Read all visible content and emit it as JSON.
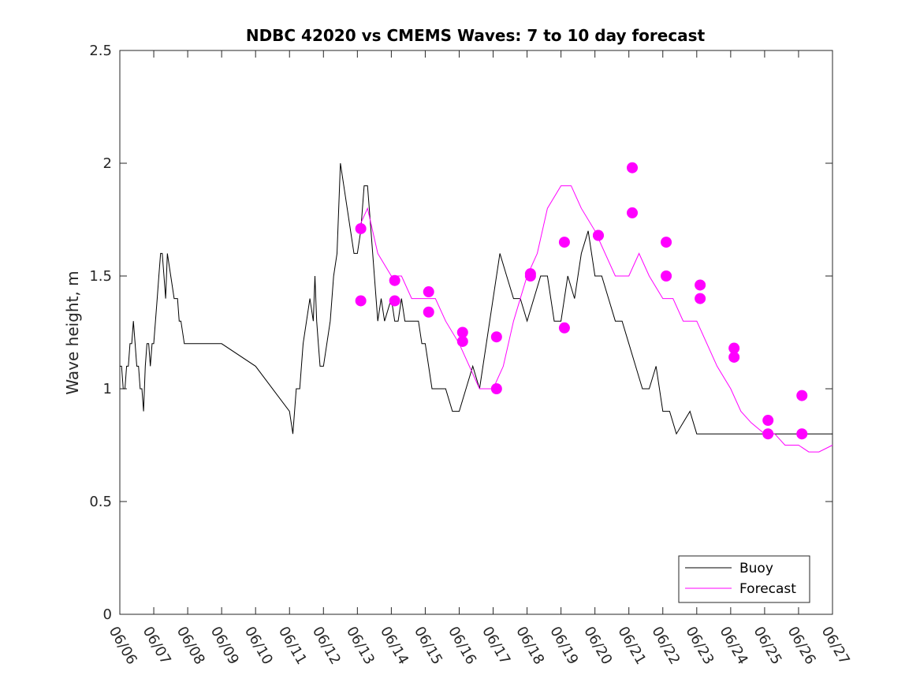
{
  "chart_data": {
    "type": "line",
    "title": "NDBC 42020 vs CMEMS Waves: 7 to 10 day forecast",
    "xlabel": "",
    "ylabel": "Wave height, m",
    "xlim": [
      0,
      21
    ],
    "ylim": [
      0,
      2.5
    ],
    "yticks": [
      0,
      0.5,
      1,
      1.5,
      2,
      2.5
    ],
    "ytick_labels": [
      "0",
      "0.5",
      "1",
      "1.5",
      "2",
      "2.5"
    ],
    "xtick_labels": [
      "06/06",
      "06/07",
      "06/08",
      "06/09",
      "06/10",
      "06/11",
      "06/12",
      "06/13",
      "06/14",
      "06/15",
      "06/16",
      "06/17",
      "06/18",
      "06/19",
      "06/20",
      "06/21",
      "06/22",
      "06/23",
      "06/24",
      "06/25",
      "06/26",
      "06/27"
    ],
    "x_unit": "days since 06/06",
    "grid": false,
    "legend_position": "bottom-right",
    "colors": {
      "buoy": "#000000",
      "forecast": "#ff00ff"
    },
    "series": [
      {
        "name": "Buoy",
        "color": "#000000",
        "x": [
          0,
          0.05,
          0.1,
          0.15,
          0.2,
          0.25,
          0.3,
          0.35,
          0.4,
          0.45,
          0.5,
          0.55,
          0.6,
          0.65,
          0.7,
          0.75,
          0.8,
          0.85,
          0.9,
          0.95,
          1.0,
          1.05,
          1.1,
          1.15,
          1.2,
          1.25,
          1.3,
          1.35,
          1.4,
          1.5,
          1.6,
          1.7,
          1.75,
          1.8,
          1.9,
          2.0,
          2.1,
          2.2,
          2.35,
          2.5,
          2.6,
          2.7,
          2.75,
          2.8,
          3.0,
          4.0,
          5.0,
          5.1,
          5.2,
          5.3,
          5.4,
          5.5,
          5.6,
          5.7,
          5.75,
          5.8,
          5.85,
          5.9,
          5.95,
          6.0,
          6.1,
          6.2,
          6.3,
          6.4,
          6.5,
          6.6,
          6.7,
          6.8,
          6.9,
          7.0,
          7.1,
          7.2,
          7.3,
          7.4,
          7.5,
          7.6,
          7.7,
          7.8,
          8.0,
          8.1,
          8.2,
          8.3,
          8.4,
          8.5,
          8.6,
          8.7,
          8.8,
          8.9,
          9.0,
          9.2,
          9.4,
          9.6,
          9.8,
          10.0,
          10.2,
          10.4,
          10.6,
          10.8,
          11.0,
          11.2,
          11.4,
          11.6,
          11.8,
          12.0,
          12.2,
          12.4,
          12.6,
          12.8,
          13.0,
          13.2,
          13.4,
          13.6,
          13.8,
          14.0,
          14.2,
          14.4,
          14.6,
          14.8,
          15.0,
          15.2,
          15.4,
          15.6,
          15.8,
          16.0,
          16.2,
          16.4,
          16.6,
          16.8,
          17.0,
          17.2,
          17.4,
          17.6,
          17.8,
          18.0,
          18.2,
          18.4,
          18.6,
          18.8,
          19.0,
          19.2,
          19.4,
          19.6,
          19.8,
          20.0,
          20.2,
          20.4,
          20.6,
          20.8,
          21.0
        ],
        "y": [
          1.1,
          1.1,
          1.0,
          1.0,
          1.1,
          1.1,
          1.2,
          1.2,
          1.3,
          1.2,
          1.1,
          1.1,
          1.0,
          1.0,
          0.9,
          1.1,
          1.2,
          1.2,
          1.1,
          1.2,
          1.2,
          1.3,
          1.4,
          1.5,
          1.6,
          1.6,
          1.5,
          1.4,
          1.6,
          1.5,
          1.4,
          1.4,
          1.3,
          1.3,
          1.2,
          1.2,
          1.2,
          1.2,
          1.2,
          1.2,
          1.2,
          1.2,
          1.2,
          1.2,
          1.2,
          1.1,
          0.9,
          0.8,
          1.0,
          1.0,
          1.2,
          1.3,
          1.4,
          1.3,
          1.5,
          1.3,
          1.2,
          1.1,
          1.1,
          1.1,
          1.2,
          1.3,
          1.5,
          1.6,
          2.0,
          1.9,
          1.8,
          1.7,
          1.6,
          1.6,
          1.7,
          1.9,
          1.9,
          1.7,
          1.5,
          1.3,
          1.4,
          1.3,
          1.4,
          1.3,
          1.3,
          1.4,
          1.3,
          1.3,
          1.3,
          1.3,
          1.3,
          1.2,
          1.2,
          1.0,
          1.0,
          1.0,
          0.9,
          0.9,
          1.0,
          1.1,
          1.0,
          1.2,
          1.4,
          1.6,
          1.5,
          1.4,
          1.4,
          1.3,
          1.4,
          1.5,
          1.5,
          1.3,
          1.3,
          1.5,
          1.4,
          1.6,
          1.7,
          1.5,
          1.5,
          1.4,
          1.3,
          1.3,
          1.2,
          1.1,
          1.0,
          1.0,
          1.1,
          0.9,
          0.9,
          0.8,
          0.85,
          0.9,
          0.8,
          0.8,
          0.8,
          0.8,
          0.8,
          0.8,
          0.8,
          0.8,
          0.8,
          0.8,
          0.8,
          0.8,
          0.8,
          0.8,
          0.8,
          0.8,
          0.8,
          0.8,
          0.8,
          0.8,
          0.8
        ]
      },
      {
        "name": "Forecast",
        "color": "#ff00ff",
        "x": [
          7.0,
          7.3,
          7.6,
          8.0,
          8.3,
          8.6,
          9.0,
          9.3,
          9.6,
          10.0,
          10.3,
          10.6,
          11.0,
          11.3,
          11.6,
          12.0,
          12.3,
          12.6,
          13.0,
          13.3,
          13.6,
          14.0,
          14.3,
          14.6,
          15.0,
          15.3,
          15.6,
          16.0,
          16.3,
          16.6,
          17.0,
          17.3,
          17.6,
          18.0,
          18.3,
          18.6,
          19.0,
          19.3,
          19.6,
          20.0,
          20.3,
          20.6,
          21.0
        ],
        "y": [
          1.7,
          1.8,
          1.6,
          1.5,
          1.5,
          1.4,
          1.4,
          1.4,
          1.3,
          1.2,
          1.1,
          1.0,
          1.0,
          1.1,
          1.3,
          1.5,
          1.6,
          1.8,
          1.9,
          1.9,
          1.8,
          1.7,
          1.6,
          1.5,
          1.5,
          1.6,
          1.5,
          1.4,
          1.4,
          1.3,
          1.3,
          1.2,
          1.1,
          1.0,
          0.9,
          0.85,
          0.8,
          0.8,
          0.75,
          0.75,
          0.72,
          0.72,
          0.75
        ]
      }
    ],
    "forecast_markers": {
      "x": [
        7.1,
        7.1,
        8.1,
        8.1,
        9.1,
        9.1,
        10.1,
        10.1,
        11.1,
        11.1,
        12.1,
        12.1,
        13.1,
        13.1,
        14.1,
        14.1,
        15.1,
        15.1,
        16.1,
        16.1,
        17.1,
        17.1,
        18.1,
        18.1,
        19.1,
        19.1,
        20.1,
        20.1
      ],
      "y": [
        1.71,
        1.39,
        1.48,
        1.39,
        1.43,
        1.34,
        1.25,
        1.21,
        1.23,
        1.0,
        1.51,
        1.5,
        1.65,
        1.27,
        1.68,
        1.68,
        1.98,
        1.78,
        1.65,
        1.5,
        1.46,
        1.4,
        1.18,
        1.14,
        0.86,
        0.8,
        0.97,
        0.8
      ]
    },
    "legend": [
      "Buoy",
      "Forecast"
    ]
  }
}
